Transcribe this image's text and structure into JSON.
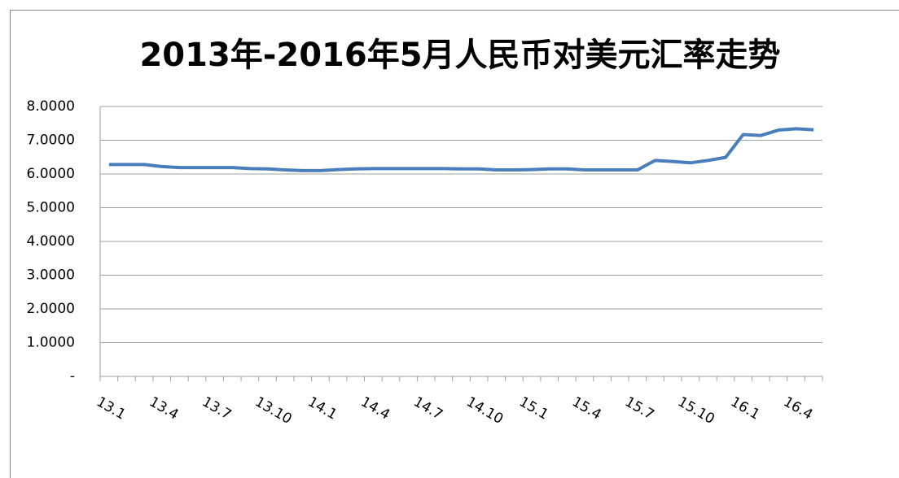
{
  "chart_data": {
    "type": "line",
    "title": "2013年-2016年5月人民币对美元汇率走势",
    "categories": [
      "13.1",
      null,
      null,
      "13.4",
      null,
      null,
      "13.7",
      null,
      null,
      "13.10",
      null,
      null,
      "14.1",
      null,
      null,
      "14.4",
      null,
      null,
      "14.7",
      null,
      null,
      "14.10",
      null,
      null,
      "15.1",
      null,
      null,
      "15.4",
      null,
      null,
      "15.7",
      null,
      null,
      "15.10",
      null,
      null,
      "16.1",
      null,
      null,
      "16.4",
      null
    ],
    "series": [
      {
        "color": "#4a7ebb",
        "values": [
          6.28,
          6.28,
          6.28,
          6.22,
          6.19,
          6.19,
          6.19,
          6.19,
          6.16,
          6.15,
          6.12,
          6.1,
          6.1,
          6.13,
          6.15,
          6.16,
          6.16,
          6.16,
          6.16,
          6.16,
          6.15,
          6.15,
          6.12,
          6.12,
          6.13,
          6.15,
          6.15,
          6.12,
          6.12,
          6.12,
          6.12,
          6.4,
          6.37,
          6.33,
          6.4,
          6.49,
          7.17,
          7.14,
          7.3,
          7.34,
          7.31
        ]
      }
    ],
    "ylim": [
      0,
      8
    ],
    "yticks": [
      {
        "value": 0,
        "label": "-"
      },
      {
        "value": 1,
        "label": "1.0000"
      },
      {
        "value": 2,
        "label": "2.0000"
      },
      {
        "value": 3,
        "label": "3.0000"
      },
      {
        "value": 4,
        "label": "4.0000"
      },
      {
        "value": 5,
        "label": "5.0000"
      },
      {
        "value": 6,
        "label": "6.0000"
      },
      {
        "value": 7,
        "label": "7.0000"
      },
      {
        "value": 8,
        "label": "8.0000"
      }
    ],
    "grid": true
  }
}
